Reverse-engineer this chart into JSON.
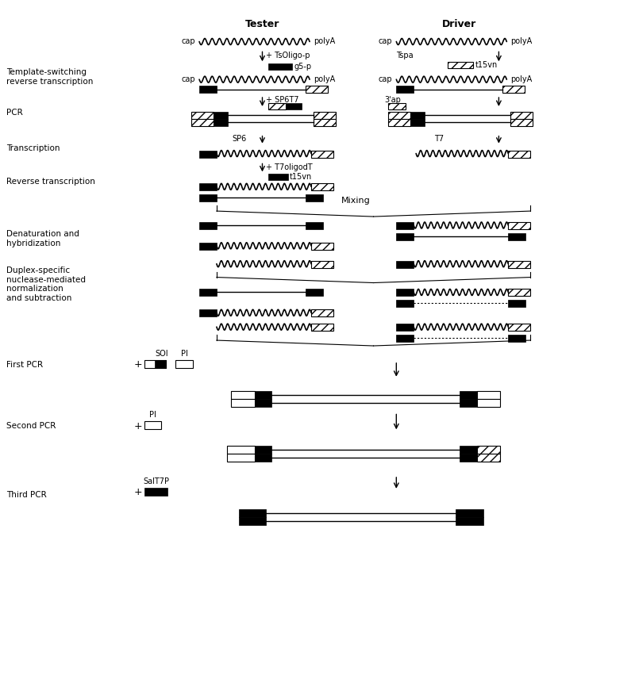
{
  "bg_color": "#ffffff",
  "fig_width": 8.0,
  "fig_height": 8.75,
  "dpi": 100,
  "labels": {
    "tester": "Tester",
    "driver": "Driver",
    "template_switching": "Template-switching\nreverse transcription",
    "pcr": "PCR",
    "transcription": "Transcription",
    "reverse_transcription": "Reverse transcription",
    "denaturation": "Denaturation and\nhybridization",
    "duplex": "Duplex-specific\nnuclease-mediated\nnormalization\nand subtraction",
    "first_pcr": "First PCR",
    "second_pcr": "Second PCR",
    "third_pcr": "Third PCR"
  }
}
